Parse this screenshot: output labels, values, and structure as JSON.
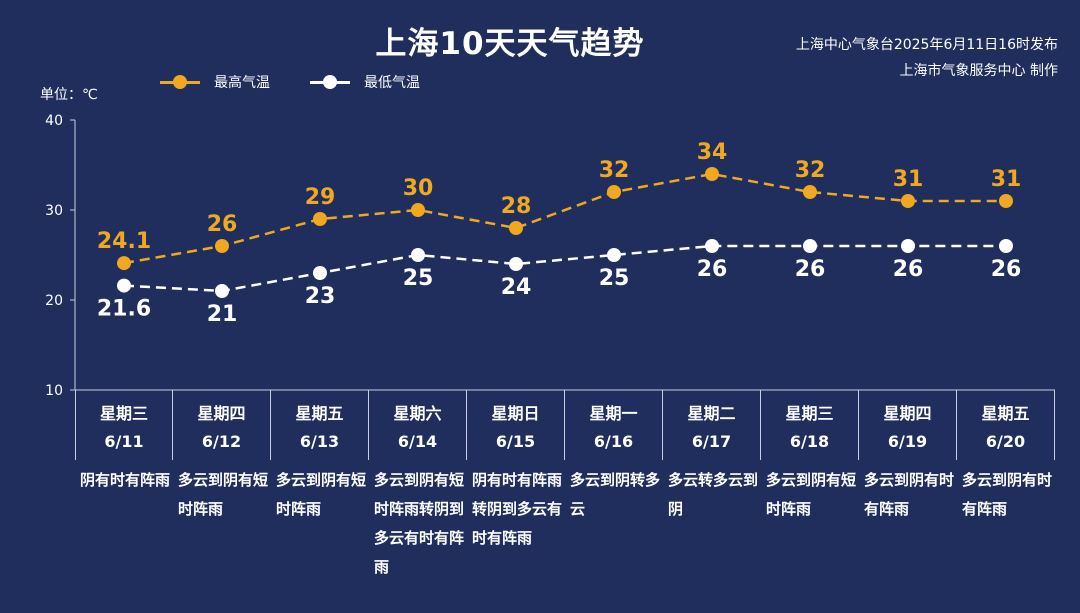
{
  "header": {
    "title": "上海10天天气趋势",
    "source_line1": "上海中心气象台2025年6月11日16时发布",
    "source_line2": "上海市气象服务中心 制作",
    "unit": "单位：℃"
  },
  "colors": {
    "high": "#f0a820",
    "low": "#ffffff",
    "background": "#1f2e5c",
    "axis": "#c8cedf"
  },
  "chart_data": {
    "type": "line",
    "title": "上海10天天气趋势",
    "ylabel": "单位：℃",
    "ylim": [
      10,
      40
    ],
    "yticks": [
      10,
      20,
      30,
      40
    ],
    "grid": false,
    "legend_position": "top-left",
    "categories": [
      "星期三 6/11",
      "星期四 6/12",
      "星期五 6/13",
      "星期六 6/14",
      "星期日 6/15",
      "星期一 6/16",
      "星期二 6/17",
      "星期三 6/18",
      "星期四 6/19",
      "星期五 6/20"
    ],
    "series": [
      {
        "name": "最高气温",
        "values": [
          24.1,
          26,
          29,
          30,
          28,
          32,
          34,
          32,
          31,
          31
        ],
        "labels": [
          "24.1",
          "26",
          "29",
          "30",
          "28",
          "32",
          "34",
          "32",
          "31",
          "31"
        ],
        "color": "#f0a820",
        "line_style": "dashed"
      },
      {
        "name": "最低气温",
        "values": [
          21.6,
          21,
          23,
          25,
          24,
          25,
          26,
          26,
          26,
          26
        ],
        "labels": [
          "21.6",
          "21",
          "23",
          "25",
          "24",
          "25",
          "26",
          "26",
          "26",
          "26"
        ],
        "color": "#ffffff",
        "line_style": "dashed"
      }
    ]
  },
  "days": [
    {
      "weekday": "星期三",
      "date": "6/11",
      "weather": "阴有时有阵雨"
    },
    {
      "weekday": "星期四",
      "date": "6/12",
      "weather": "多云到阴有短时阵雨"
    },
    {
      "weekday": "星期五",
      "date": "6/13",
      "weather": "多云到阴有短时阵雨"
    },
    {
      "weekday": "星期六",
      "date": "6/14",
      "weather": "多云到阴有短时阵雨转阴到多云有时有阵雨"
    },
    {
      "weekday": "星期日",
      "date": "6/15",
      "weather": "阴有时有阵雨转阴到多云有时有阵雨"
    },
    {
      "weekday": "星期一",
      "date": "6/16",
      "weather": "多云到阴转多云"
    },
    {
      "weekday": "星期二",
      "date": "6/17",
      "weather": "多云转多云到阴"
    },
    {
      "weekday": "星期三",
      "date": "6/18",
      "weather": "多云到阴有短时阵雨"
    },
    {
      "weekday": "星期四",
      "date": "6/19",
      "weather": "多云到阴有时有阵雨"
    },
    {
      "weekday": "星期五",
      "date": "6/20",
      "weather": "多云到阴有时有阵雨"
    }
  ]
}
